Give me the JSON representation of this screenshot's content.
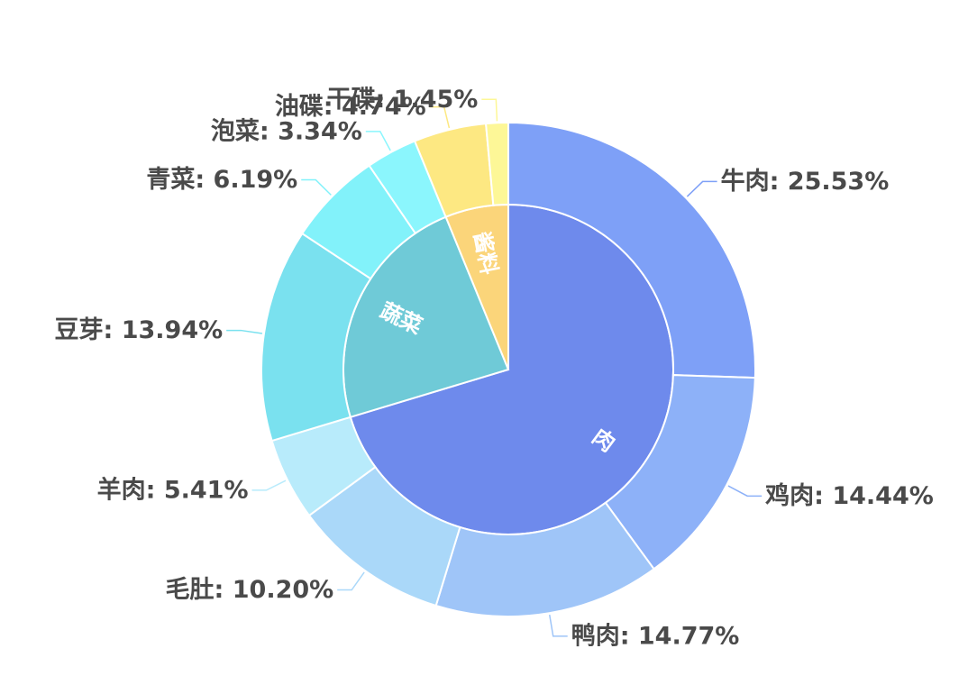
{
  "chart_data": {
    "type": "pie",
    "title": "",
    "inner": [
      {
        "name": "肉",
        "value": 70.35,
        "color": "#6e8aec"
      },
      {
        "name": "蔬菜",
        "value": 23.47,
        "color": "#6fcad7"
      },
      {
        "name": "酱料",
        "value": 6.19,
        "color": "#fbd57a"
      }
    ],
    "outer": [
      {
        "name": "牛肉",
        "value": 25.53,
        "label": "牛肉: 25.53%",
        "color": "#7ea0f7",
        "group": "肉"
      },
      {
        "name": "鸡肉",
        "value": 14.44,
        "label": "鸡肉: 14.44%",
        "color": "#8db1f8",
        "group": "肉"
      },
      {
        "name": "鸭肉",
        "value": 14.77,
        "label": "鸭肉: 14.77%",
        "color": "#9fc5f8",
        "group": "肉"
      },
      {
        "name": "毛肚",
        "value": 10.2,
        "label": "毛肚: 10.20%",
        "color": "#aad8f9",
        "group": "肉"
      },
      {
        "name": "羊肉",
        "value": 5.41,
        "label": "羊肉: 5.41%",
        "color": "#b8ebfb",
        "group": "肉"
      },
      {
        "name": "豆芽",
        "value": 13.94,
        "label": "豆芽: 13.94%",
        "color": "#7ae1ef",
        "group": "蔬菜"
      },
      {
        "name": "青菜",
        "value": 6.19,
        "label": "青菜: 6.19%",
        "color": "#82f2fa",
        "group": "蔬菜"
      },
      {
        "name": "泡菜",
        "value": 3.34,
        "label": "泡菜: 3.34%",
        "color": "#8bf6fd",
        "group": "蔬菜"
      },
      {
        "name": "油碟",
        "value": 4.74,
        "label": "油碟: 4.74%",
        "color": "#fde882",
        "group": "酱料"
      },
      {
        "name": "干碟",
        "value": 1.45,
        "label": "干碟: 1.45%",
        "color": "#fdf797",
        "group": "酱料"
      }
    ]
  }
}
